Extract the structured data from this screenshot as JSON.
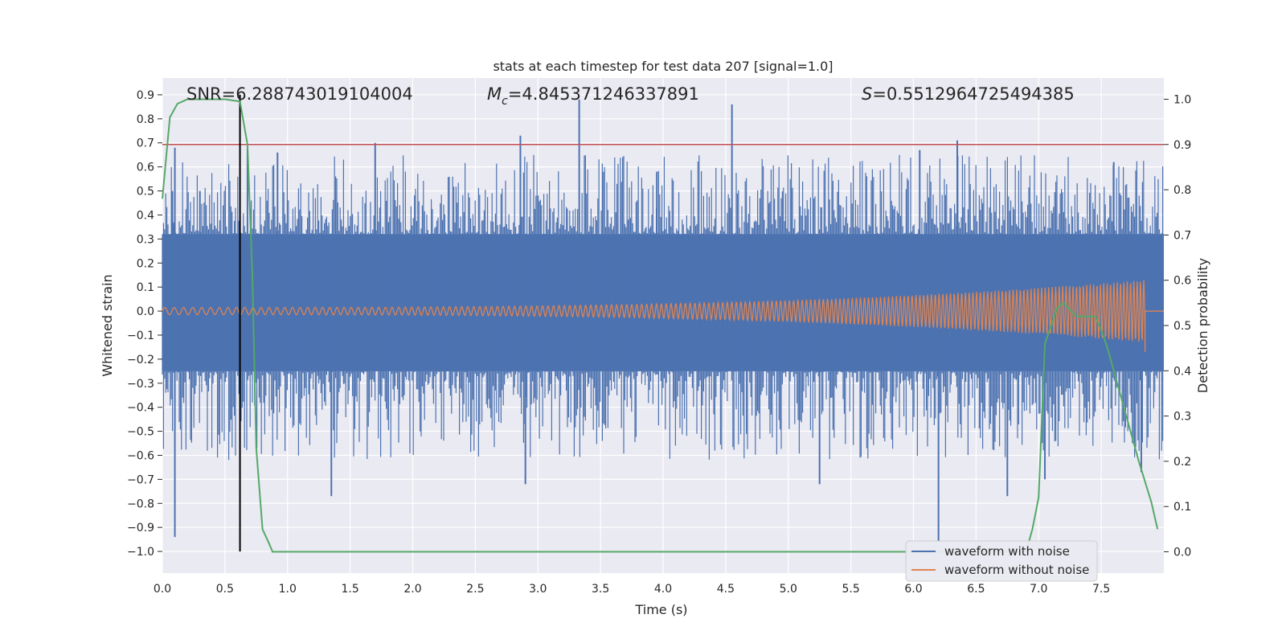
{
  "chart_data": {
    "type": "line",
    "title": "stats at each timestep for test data 207 [signal=1.0]",
    "xlabel": "Time (s)",
    "ylabel": "Whitened strain",
    "y2label": "Detection probability",
    "xlim": [
      0.0,
      8.0
    ],
    "ylim": [
      -1.09,
      0.97
    ],
    "y2lim": [
      -0.047,
      1.047
    ],
    "xticks": [
      "0.0",
      "0.5",
      "1.0",
      "1.5",
      "2.0",
      "2.5",
      "3.0",
      "3.5",
      "4.0",
      "4.5",
      "5.0",
      "5.5",
      "6.0",
      "6.5",
      "7.0",
      "7.5"
    ],
    "xtick_values": [
      0.0,
      0.5,
      1.0,
      1.5,
      2.0,
      2.5,
      3.0,
      3.5,
      4.0,
      4.5,
      5.0,
      5.5,
      6.0,
      6.5,
      7.0,
      7.5
    ],
    "yticks": [
      "−1.0",
      "−0.9",
      "−0.8",
      "−0.7",
      "−0.6",
      "−0.5",
      "−0.4",
      "−0.3",
      "−0.2",
      "−0.1",
      "0.0",
      "0.1",
      "0.2",
      "0.3",
      "0.4",
      "0.5",
      "0.6",
      "0.7",
      "0.8",
      "0.9"
    ],
    "ytick_values": [
      -1.0,
      -0.9,
      -0.8,
      -0.7,
      -0.6,
      -0.5,
      -0.4,
      -0.3,
      -0.2,
      -0.1,
      0.0,
      0.1,
      0.2,
      0.3,
      0.4,
      0.5,
      0.6,
      0.7,
      0.8,
      0.9
    ],
    "y2ticks": [
      "0.0",
      "0.1",
      "0.2",
      "0.3",
      "0.4",
      "0.5",
      "0.6",
      "0.7",
      "0.8",
      "0.9",
      "1.0"
    ],
    "y2tick_values": [
      0.0,
      0.1,
      0.2,
      0.3,
      0.4,
      0.5,
      0.6,
      0.7,
      0.8,
      0.9,
      1.0
    ],
    "annotations": {
      "snr": "SNR=6.288743019104004",
      "mc": "=4.845371246337891",
      "mc_symbol": "M",
      "mc_sub": "c",
      "s": "=0.5512964725494385",
      "s_symbol": "S"
    },
    "threshold_line": {
      "value": 0.9,
      "axis": "right",
      "color": "#c44e52"
    },
    "vertical_marker": {
      "x": 0.62,
      "y_from": -1.0,
      "y_to": 0.9,
      "color": "#000000"
    },
    "noise_envelope": {
      "core_min": -0.25,
      "core_max": 0.32,
      "peaks_top": [
        {
          "x": 0.08,
          "y": 0.5
        },
        {
          "x": 0.1,
          "y": 0.68
        },
        {
          "x": 0.3,
          "y": 0.5
        },
        {
          "x": 0.68,
          "y": 0.68
        },
        {
          "x": 0.92,
          "y": 0.66
        },
        {
          "x": 1.7,
          "y": 0.7
        },
        {
          "x": 2.86,
          "y": 0.73
        },
        {
          "x": 3.33,
          "y": 0.88
        },
        {
          "x": 3.95,
          "y": 0.58
        },
        {
          "x": 4.55,
          "y": 0.86
        },
        {
          "x": 6.05,
          "y": 0.67
        },
        {
          "x": 6.35,
          "y": 0.71
        },
        {
          "x": 7.6,
          "y": 0.62
        }
      ],
      "peaks_bottom": [
        {
          "x": 0.1,
          "y": -0.94
        },
        {
          "x": 1.35,
          "y": -0.77
        },
        {
          "x": 2.9,
          "y": -0.72
        },
        {
          "x": 5.25,
          "y": -0.72
        },
        {
          "x": 6.2,
          "y": -0.96
        },
        {
          "x": 6.75,
          "y": -0.77
        },
        {
          "x": 7.05,
          "y": -0.7
        },
        {
          "x": 7.82,
          "y": -0.67
        }
      ]
    },
    "series": [
      {
        "name": "waveform with noise",
        "color": "#4c72b0"
      },
      {
        "name": "waveform without noise",
        "color": "#dd8452",
        "amp_start": 0.015,
        "amp_end": 0.13,
        "t_end": 7.85
      },
      {
        "name": "detection probability",
        "color": "#55a868",
        "axis": "right",
        "x": [
          0.0,
          0.06,
          0.12,
          0.2,
          0.35,
          0.5,
          0.62,
          0.68,
          0.72,
          0.75,
          0.8,
          0.85,
          0.88,
          1.0,
          2.0,
          3.0,
          4.0,
          5.0,
          6.0,
          6.5,
          6.9,
          6.95,
          7.0,
          7.05,
          7.1,
          7.15,
          7.2,
          7.3,
          7.4,
          7.45,
          7.5,
          7.55,
          7.6,
          7.7,
          7.8,
          7.9,
          7.95
        ],
        "y": [
          0.78,
          0.96,
          0.99,
          1.0,
          1.0,
          1.0,
          0.995,
          0.9,
          0.6,
          0.23,
          0.05,
          0.02,
          0.0,
          0.0,
          0.0,
          0.0,
          0.0,
          0.0,
          0.0,
          0.0,
          0.0,
          0.05,
          0.12,
          0.46,
          0.5,
          0.54,
          0.55,
          0.52,
          0.52,
          0.52,
          0.49,
          0.45,
          0.4,
          0.3,
          0.2,
          0.11,
          0.05
        ]
      }
    ],
    "legend": {
      "position": "lower-right",
      "entries": [
        "waveform with noise",
        "waveform without noise"
      ]
    }
  }
}
